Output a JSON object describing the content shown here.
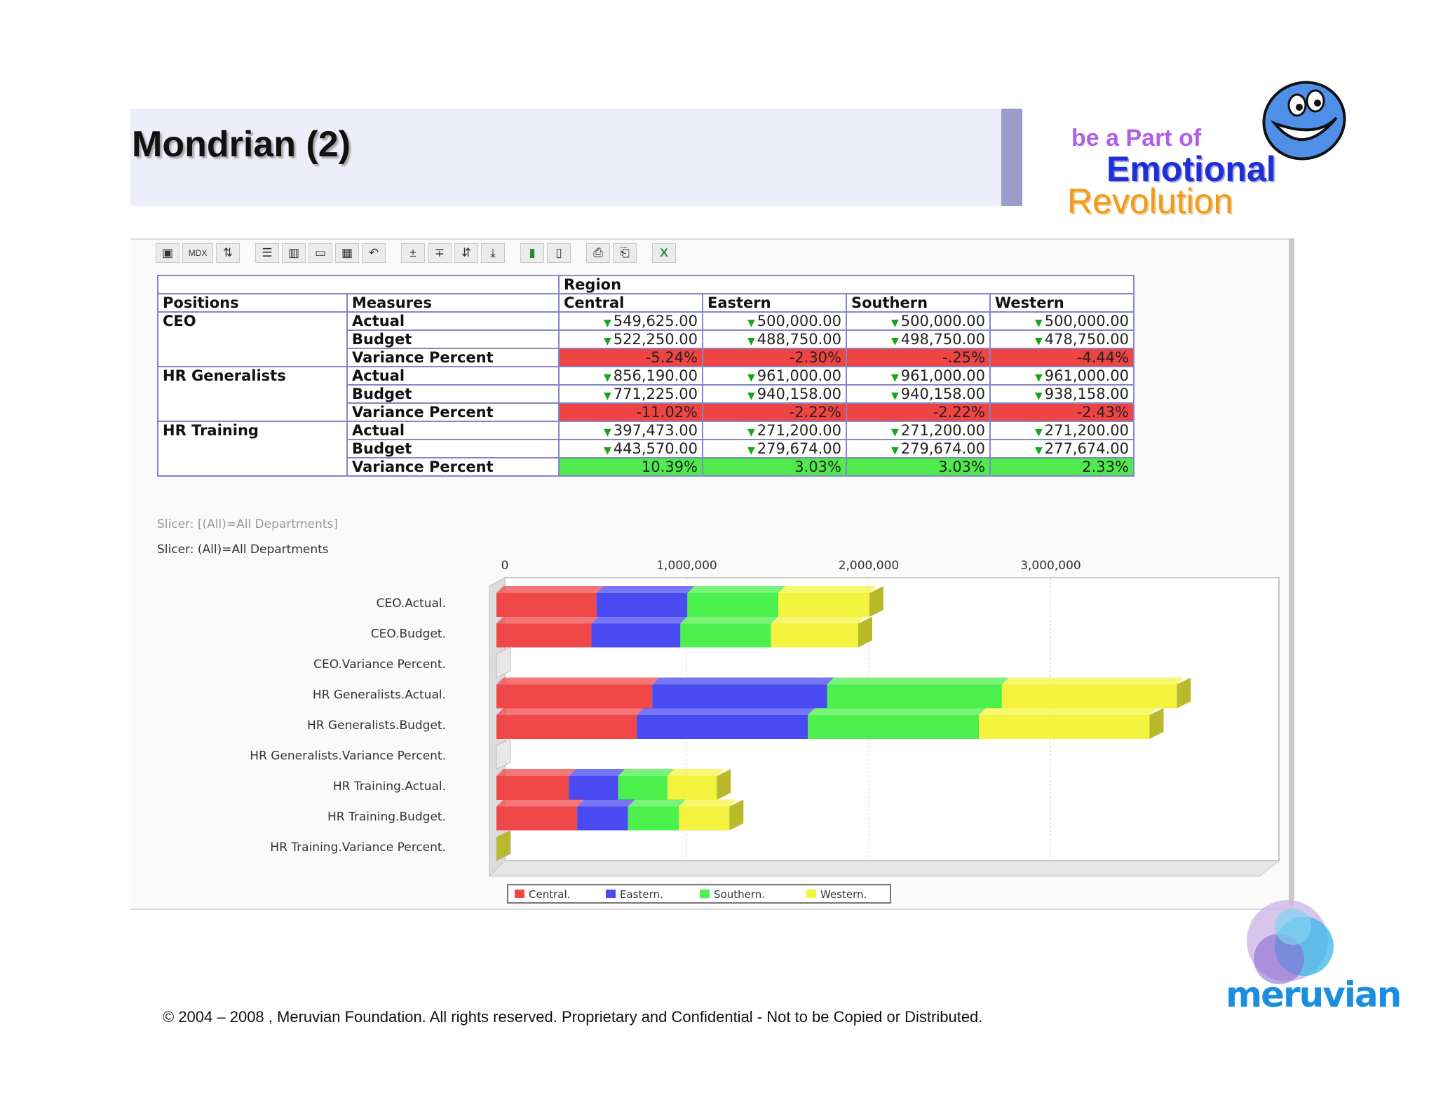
{
  "slide": {
    "title": "Mondrian (2)",
    "tagline": {
      "line1": "be a Part of",
      "line2": "Emotional",
      "line3": "Revolution"
    },
    "footer": "© 2004 – 2008 , Meruvian Foundation. All rights reserved. Proprietary and Confidential - Not to be Copied or Distributed.",
    "logo_text": "meruvian"
  },
  "toolbar": {
    "buttons": [
      {
        "name": "cube-icon",
        "glyph": "▣"
      },
      {
        "name": "mdx-button",
        "glyph": "MDX"
      },
      {
        "name": "sort-icon",
        "glyph": "⇅"
      },
      {
        "name": "hierarchy-icon",
        "glyph": "☰"
      },
      {
        "name": "columns-icon",
        "glyph": "▥"
      },
      {
        "name": "grid-icon",
        "glyph": "▭"
      },
      {
        "name": "table-icon",
        "glyph": "▦"
      },
      {
        "name": "undo-icon",
        "glyph": "↶"
      },
      {
        "name": "expand-icon",
        "glyph": "±"
      },
      {
        "name": "collapse-icon",
        "glyph": "∓"
      },
      {
        "name": "swap-icon",
        "glyph": "⇵"
      },
      {
        "name": "drillthrough-icon",
        "glyph": "⤓"
      },
      {
        "name": "chart-icon",
        "glyph": "▮"
      },
      {
        "name": "chart-config-icon",
        "glyph": "▯"
      },
      {
        "name": "print-icon",
        "glyph": "⎙"
      },
      {
        "name": "print-setup-icon",
        "glyph": "⎗"
      },
      {
        "name": "excel-icon",
        "glyph": "X"
      }
    ]
  },
  "pivot": {
    "region_label": "Region",
    "col_positions": "Positions",
    "col_measures": "Measures",
    "regions": [
      "Central",
      "Eastern",
      "Southern",
      "Western"
    ],
    "groups": [
      {
        "position": "CEO",
        "rows": [
          {
            "measure": "Actual",
            "type": "num",
            "values": [
              "549,625.00",
              "500,000.00",
              "500,000.00",
              "500,000.00"
            ]
          },
          {
            "measure": "Budget",
            "type": "num",
            "values": [
              "522,250.00",
              "488,750.00",
              "498,750.00",
              "478,750.00"
            ]
          },
          {
            "measure": "Variance Percent",
            "type": "red",
            "values": [
              "-5.24%",
              "-2.30%",
              "-.25%",
              "-4.44%"
            ]
          }
        ]
      },
      {
        "position": "HR Generalists",
        "rows": [
          {
            "measure": "Actual",
            "type": "num",
            "values": [
              "856,190.00",
              "961,000.00",
              "961,000.00",
              "961,000.00"
            ]
          },
          {
            "measure": "Budget",
            "type": "num",
            "values": [
              "771,225.00",
              "940,158.00",
              "940,158.00",
              "938,158.00"
            ]
          },
          {
            "measure": "Variance Percent",
            "type": "red",
            "values": [
              "-11.02%",
              "-2.22%",
              "-2.22%",
              "-2.43%"
            ]
          }
        ]
      },
      {
        "position": "HR Training",
        "rows": [
          {
            "measure": "Actual",
            "type": "num",
            "values": [
              "397,473.00",
              "271,200.00",
              "271,200.00",
              "271,200.00"
            ]
          },
          {
            "measure": "Budget",
            "type": "num",
            "values": [
              "443,570.00",
              "279,674.00",
              "279,674.00",
              "277,674.00"
            ]
          },
          {
            "measure": "Variance Percent",
            "type": "green",
            "values": [
              "10.39%",
              "3.03%",
              "3.03%",
              "2.33%"
            ]
          }
        ]
      }
    ]
  },
  "slicer": {
    "line1": "Slicer: [(All)=All Departments]",
    "line2": "Slicer: (All)=All Departments"
  },
  "chart_data": {
    "type": "bar",
    "orientation": "horizontal",
    "stacked": true,
    "categories": [
      "CEO.Actual.",
      "CEO.Budget.",
      "CEO.Variance Percent.",
      "HR Generalists.Actual.",
      "HR Generalists.Budget.",
      "HR Generalists.Variance Percent.",
      "HR Training.Actual.",
      "HR Training.Budget.",
      "HR Training.Variance Percent."
    ],
    "series": [
      {
        "name": "Central.",
        "color": "#f04848",
        "values": [
          549625,
          522250,
          0,
          856190,
          771225,
          0,
          397473,
          443570,
          0
        ]
      },
      {
        "name": "Eastern.",
        "color": "#4a4af2",
        "values": [
          500000,
          488750,
          0,
          961000,
          940158,
          0,
          271200,
          279674,
          0
        ]
      },
      {
        "name": "Southern.",
        "color": "#4cf04c",
        "values": [
          500000,
          498750,
          0,
          961000,
          940158,
          0,
          271200,
          279674,
          0
        ]
      },
      {
        "name": "Western.",
        "color": "#f4f440",
        "values": [
          500000,
          478750,
          0,
          961000,
          938158,
          0,
          271200,
          277674,
          0
        ]
      }
    ],
    "xlim": [
      0,
      3900000
    ],
    "xticks": [
      "0",
      "1,000,000",
      "2,000,000",
      "3,000,000"
    ],
    "xtick_values": [
      0,
      1000000,
      2000000,
      3000000
    ],
    "legend_position": "bottom",
    "grid": true
  }
}
